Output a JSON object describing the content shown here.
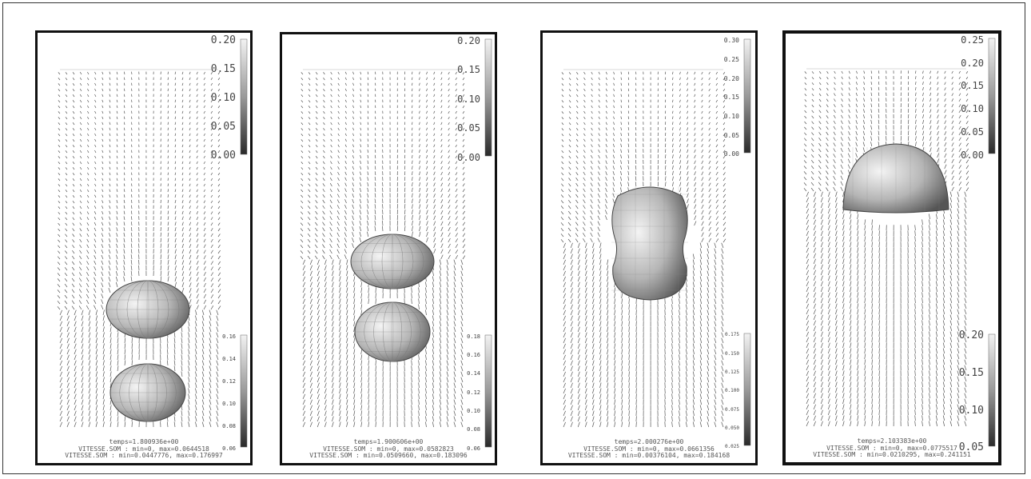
{
  "figure": {
    "panels": [
      {
        "name": "panel-1",
        "top_ticks": [
          "0.20",
          "0.15",
          "0.10",
          "0.05",
          "0.00"
        ],
        "bottom_ticks": [
          "0.16",
          "0.14",
          "0.12",
          "0.10",
          "0.08",
          "0.06"
        ],
        "caption": [
          "temps=1.800936e+00",
          "VITESSE.SOM : min=0, max=0.0644518",
          "VITESSE.SOM : min=0.0447776, max=0.176997"
        ],
        "blobs": [
          "upper-drop",
          "lower-drop"
        ]
      },
      {
        "name": "panel-2",
        "top_ticks": [
          "0.20",
          "0.15",
          "0.10",
          "0.05",
          "0.00"
        ],
        "bottom_ticks": [
          "0.18",
          "0.16",
          "0.14",
          "0.12",
          "0.10",
          "0.08",
          "0.06"
        ],
        "caption": [
          "temps=1.900606e+00",
          "VITESSE.SOM : min=0, max=0.0582823",
          "VITESSE.SOM : min=0.0509660, max=0.183096"
        ],
        "blobs": [
          "upper-drop",
          "lower-drop"
        ]
      },
      {
        "name": "panel-3",
        "top_ticks": [
          "0.30",
          "0.25",
          "0.20",
          "0.15",
          "0.10",
          "0.05",
          "0.00"
        ],
        "bottom_ticks": [
          "0.175",
          "0.150",
          "0.125",
          "0.100",
          "0.075",
          "0.050",
          "0.025"
        ],
        "caption": [
          "temps=2.000276e+00",
          "VITESSE.SOM : min=0, max=0.0661356",
          "VITESSE.SOM : min=0.00376104, max=0.184168"
        ],
        "blobs": [
          "merged-drop"
        ]
      },
      {
        "name": "panel-4",
        "top_ticks": [
          "0.25",
          "0.20",
          "0.15",
          "0.10",
          "0.05",
          "0.00"
        ],
        "bottom_ticks": [
          "0.20",
          "0.15",
          "0.10",
          "0.05"
        ],
        "caption": [
          "temps=2.103383e+00",
          "VITESSE.SOM : min=0, max=0.0775517",
          "VITESSE.SOM : min=0.0210295, max=0.241151"
        ],
        "blobs": [
          "cap-drop"
        ]
      }
    ]
  }
}
